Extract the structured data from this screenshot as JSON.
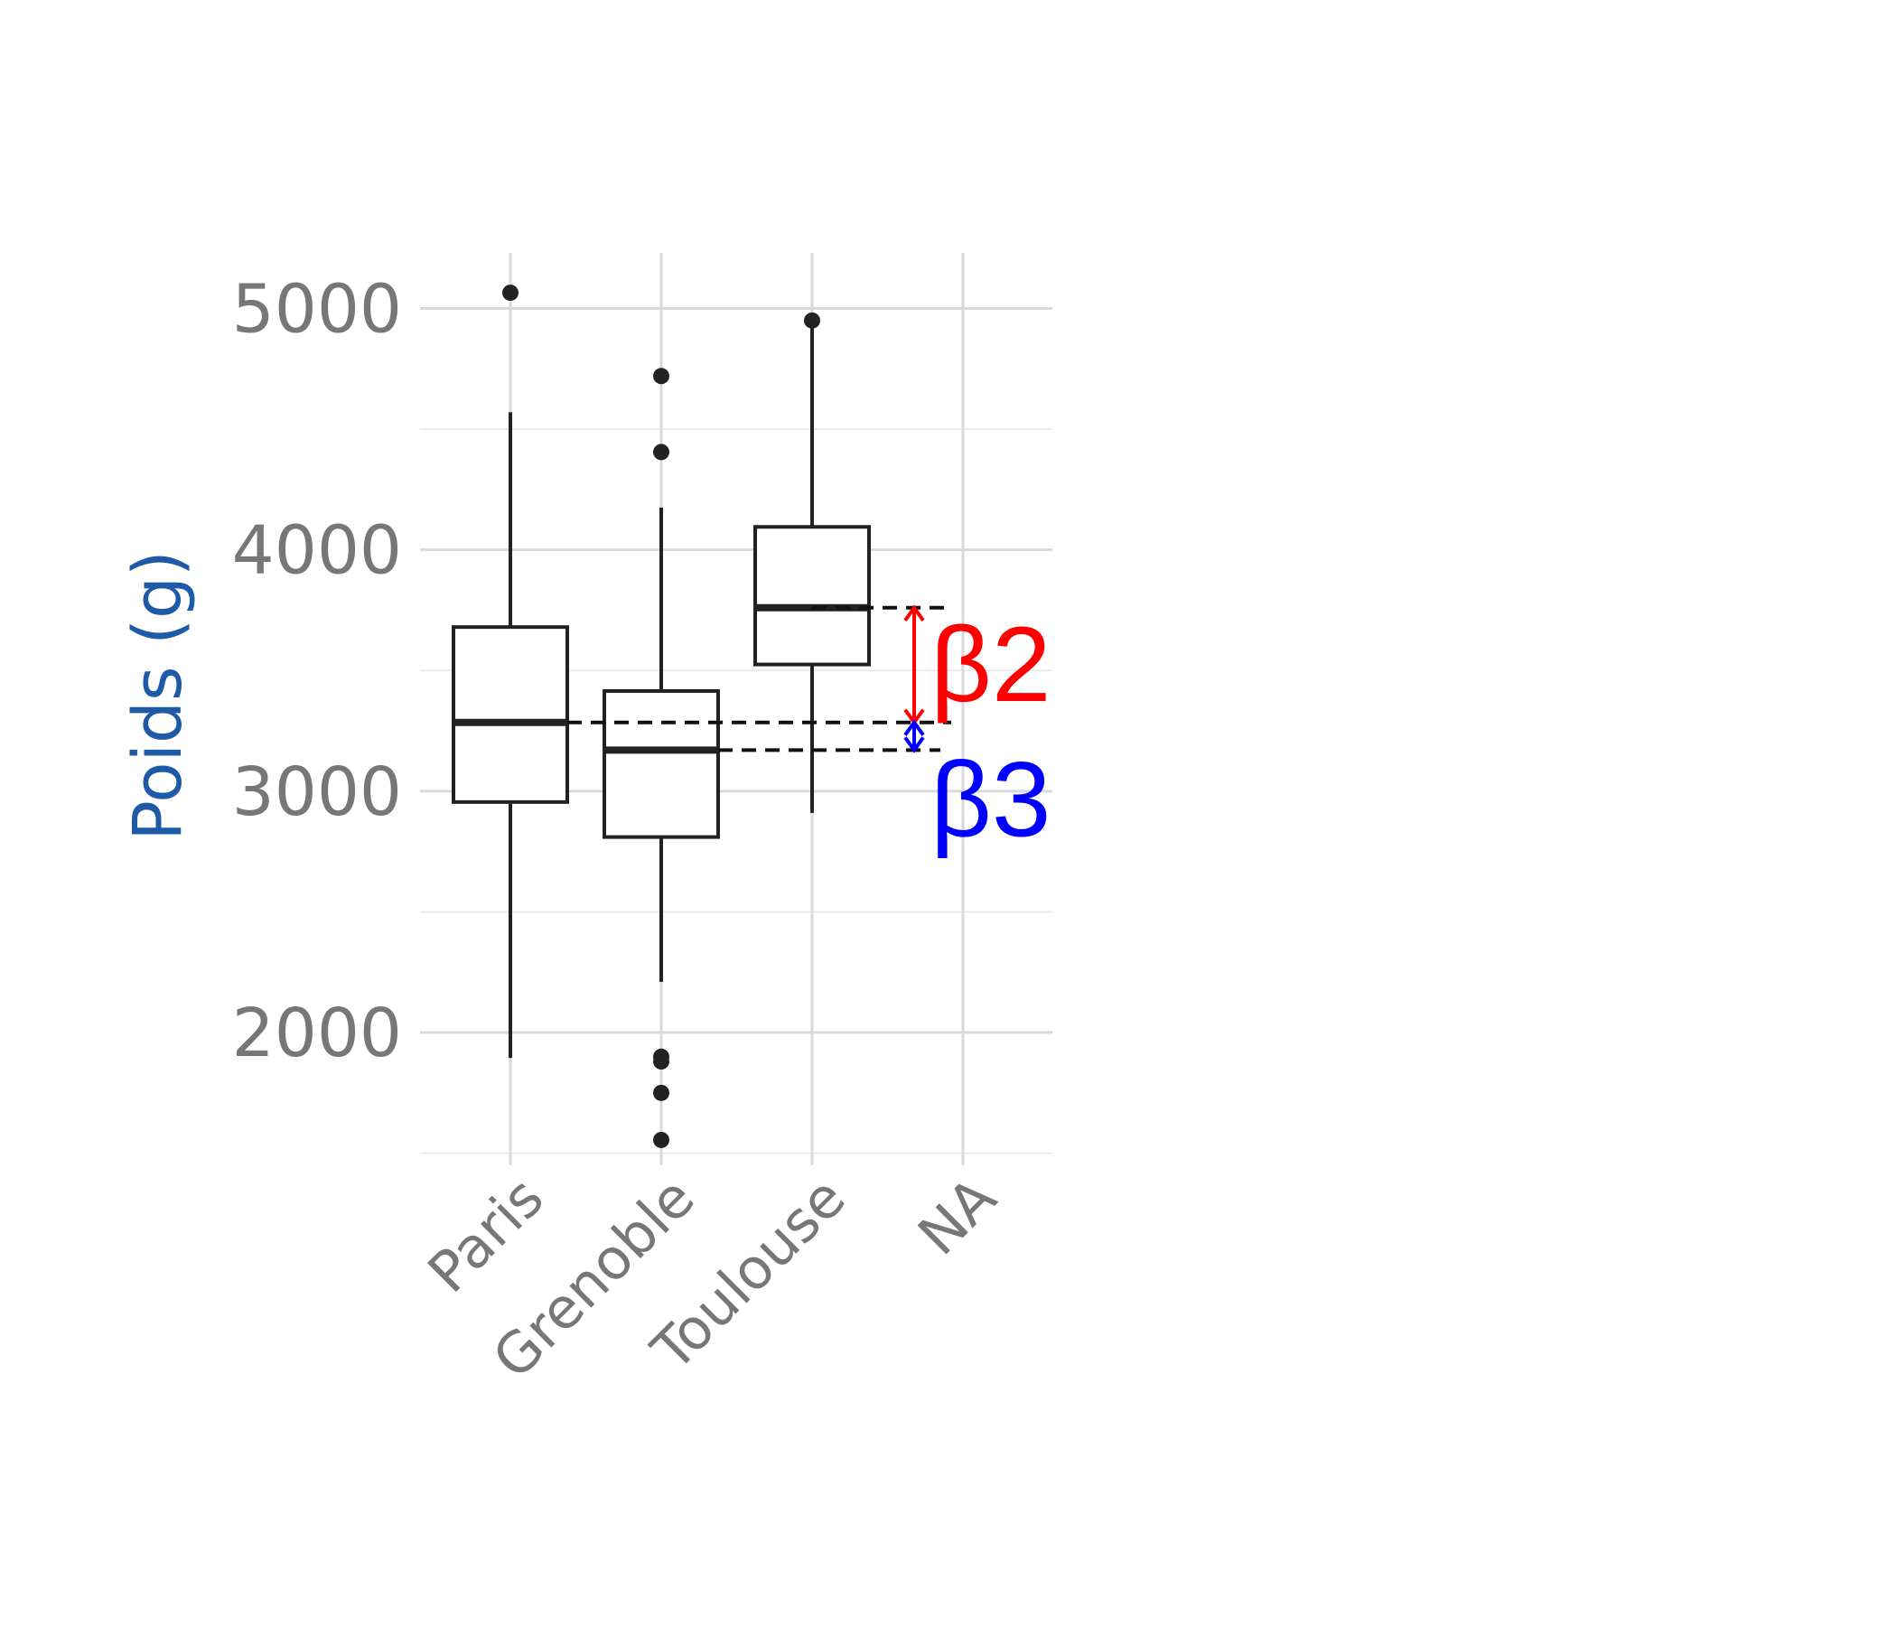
{
  "chart_data": {
    "type": "boxplot",
    "title": "",
    "xlabel": "",
    "ylabel": "Poids (g)",
    "ylim": [
      1450,
      5230
    ],
    "yticks": [
      2000,
      3000,
      4000,
      5000
    ],
    "yticklabels": [
      "2000",
      "3000",
      "4000",
      "5000"
    ],
    "categories": [
      "Paris",
      "Grenoble",
      "Toulouse",
      "NA"
    ],
    "grid": true,
    "boxes": [
      {
        "category": "Paris",
        "whisker_low": 1895,
        "q1": 2955,
        "median": 3285,
        "q3": 3680,
        "whisker_high": 4570,
        "outliers": [
          5065
        ]
      },
      {
        "category": "Grenoble",
        "whisker_low": 2210,
        "q1": 2810,
        "median": 3170,
        "q3": 3415,
        "whisker_high": 4175,
        "outliers": [
          4720,
          4405,
          1900,
          1880,
          1750,
          1555
        ]
      },
      {
        "category": "Toulouse",
        "whisker_low": 2910,
        "q1": 3525,
        "median": 3760,
        "q3": 4095,
        "whisker_high": 4950,
        "outliers": [
          4950
        ]
      }
    ],
    "reference_lines": [
      {
        "value": 3760,
        "from_category": "Toulouse"
      },
      {
        "value": 3285,
        "from_category": "Paris"
      },
      {
        "value": 3170,
        "from_category": "Grenoble"
      }
    ],
    "annotations": [
      {
        "text": "β2",
        "from": 3285,
        "to": 3760,
        "color": "#ff0000"
      },
      {
        "text": "β3",
        "from": 3170,
        "to": 3285,
        "color": "#0000ff"
      }
    ]
  },
  "colors": {
    "grid": "#d9d9d9",
    "grid_minor": "#ececec",
    "box": "#222222",
    "tick_text": "#777777",
    "ylabel": "#1f5aa8"
  }
}
